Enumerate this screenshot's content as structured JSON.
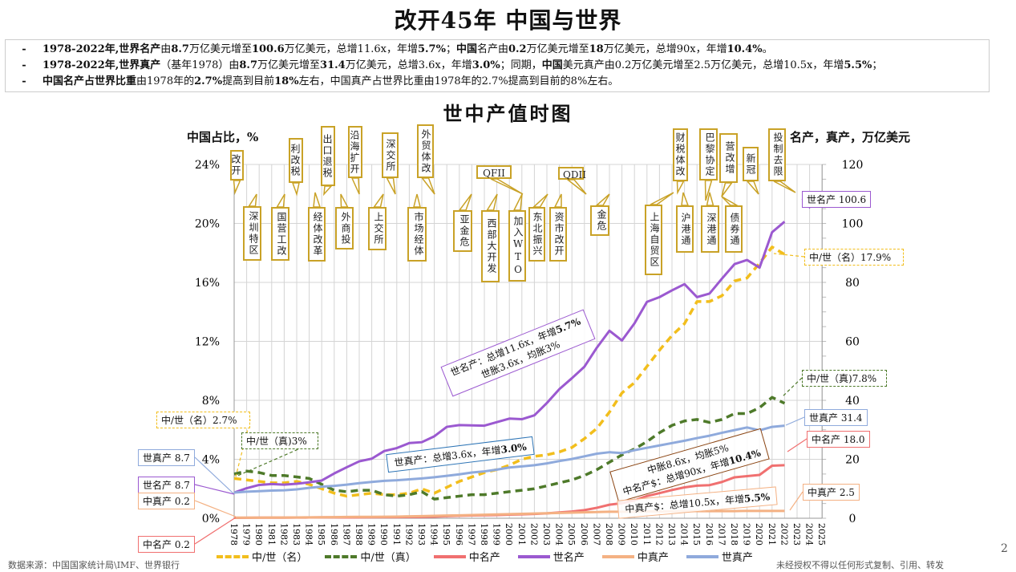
{
  "title": "改开45年 中国与世界",
  "summary": [
    [
      {
        "t": "1978-2022年,世界名产",
        "b": true
      },
      {
        "t": "由"
      },
      {
        "t": "8.7",
        "b": true
      },
      {
        "t": "万亿美元增至"
      },
      {
        "t": "100.6",
        "b": true
      },
      {
        "t": "万亿美元，总增11.6x，年增"
      },
      {
        "t": "5.7%",
        "b": true
      },
      {
        "t": "；"
      },
      {
        "t": "中国",
        "b": true
      },
      {
        "t": "名产由"
      },
      {
        "t": "0.2",
        "b": true
      },
      {
        "t": "万亿美元增至"
      },
      {
        "t": "18",
        "b": true
      },
      {
        "t": "万亿美元，总增90x，年增"
      },
      {
        "t": "10.4%",
        "b": true
      },
      {
        "t": "。"
      }
    ],
    [
      {
        "t": "1978-2022年,世界真产",
        "b": true
      },
      {
        "t": "（基年1978）由"
      },
      {
        "t": "8.7",
        "b": true
      },
      {
        "t": "万亿美元增至"
      },
      {
        "t": "31.4",
        "b": true
      },
      {
        "t": "万亿美元，总增3.6x，年增"
      },
      {
        "t": "3.0%",
        "b": true
      },
      {
        "t": "；同期，"
      },
      {
        "t": "中国",
        "b": true
      },
      {
        "t": "美元真产由0.2万亿美元增至2.5万亿美元，总增10.5x，年增"
      },
      {
        "t": "5.5%",
        "b": true
      },
      {
        "t": "；"
      }
    ],
    [
      {
        "t": "中国名产占世界比重",
        "b": true
      },
      {
        "t": "由1978年的"
      },
      {
        "t": "2.7%",
        "b": true
      },
      {
        "t": "提高到目前"
      },
      {
        "t": "18%",
        "b": true
      },
      {
        "t": "左右，中国真产占世界比重由1978年的2.7%提高到目前的8%左右。"
      }
    ]
  ],
  "summary_bullet": "-",
  "footer": {
    "source": "数据来源：中国国家统计局\\IMF、世界银行",
    "copyright": "未经授权不得以任何形式复制、引用、转发",
    "page": "2"
  },
  "annotations": [
    "改开",
    "深圳特区",
    "国营工改",
    "利改税",
    "经体改革",
    "出口退税",
    "外商投",
    "沿海扩开",
    "上交所",
    "深交所",
    "市场经体",
    "外贸体改",
    "亚金危",
    "QFII",
    "西部大开发",
    "加入WTO",
    "东北振兴",
    "资市改开",
    "QDII",
    "金危",
    "上海自贸区",
    "财税体改",
    "沪港通",
    "深港通",
    "巴黎协定",
    "债券通",
    "营改增",
    "新冠",
    "投制去限"
  ],
  "end_labels": {
    "left": [
      "中/世（名）2.7%",
      "中/世（真)3%",
      "世真产 8.7",
      "世名产 8.7",
      "中真产 0.2",
      "中名产 0.2"
    ],
    "right": [
      "世名产 100.6",
      "中/世（名）17.9%",
      "中/世（真)7.8%",
      "世真产 31.4",
      "中名产 18.0",
      "中真产 2.5"
    ]
  },
  "callouts": {
    "world_nominal": [
      "世名产：总增11.6x，年增",
      "5.7%",
      "世胀3.6x，均胀3%"
    ],
    "world_real": [
      "世真产：总增3.6x，年增",
      "3.0%"
    ],
    "china_nominal": [
      "中胀8.6x，均胀5%",
      "中名产$：总增90x，年增",
      "10.4%"
    ],
    "china_real": [
      "中真产$：总增10.5x，年增",
      "5.5%"
    ]
  },
  "chart_data": {
    "type": "line",
    "title": "世中产值时图",
    "ylabel_left": "中国占比，%",
    "ylabel_right": "名产，真产，万亿美元",
    "ylim_left": [
      0,
      24
    ],
    "ylim_right": [
      0,
      120
    ],
    "yticks_left": [
      "0%",
      "4%",
      "8%",
      "12%",
      "16%",
      "20%",
      "24%"
    ],
    "yticks_right": [
      "0",
      "20",
      "40",
      "60",
      "80",
      "100",
      "120"
    ],
    "x_range": [
      1978,
      2025
    ],
    "x": [
      1978,
      1979,
      1980,
      1981,
      1982,
      1983,
      1984,
      1985,
      1986,
      1987,
      1988,
      1989,
      1990,
      1991,
      1992,
      1993,
      1994,
      1995,
      1996,
      1997,
      1998,
      1999,
      2000,
      2001,
      2002,
      2003,
      2004,
      2005,
      2006,
      2007,
      2008,
      2009,
      2010,
      2011,
      2012,
      2013,
      2014,
      2015,
      2016,
      2017,
      2018,
      2019,
      2020,
      2021,
      2022
    ],
    "grid": true,
    "legend_position": "bottom",
    "series": [
      {
        "name": "中/世（名）",
        "axis": "left",
        "color": "#F2BE1C",
        "dash": "dash",
        "values": [
          2.7,
          2.6,
          2.5,
          2.4,
          2.4,
          2.5,
          2.3,
          2.0,
          1.7,
          1.5,
          1.6,
          1.7,
          1.6,
          1.6,
          1.7,
          2.0,
          1.7,
          2.1,
          2.5,
          2.8,
          3.1,
          3.3,
          3.6,
          4.0,
          4.2,
          4.3,
          4.5,
          4.8,
          5.4,
          6.1,
          7.2,
          8.5,
          9.2,
          10.3,
          11.4,
          12.4,
          13.2,
          14.7,
          14.7,
          15.1,
          16.1,
          16.3,
          17.3,
          18.4,
          17.9
        ]
      },
      {
        "name": "中/世（真）",
        "axis": "left",
        "color": "#4E7A2A",
        "dash": "dash",
        "values": [
          3.0,
          3.2,
          3.1,
          2.9,
          2.9,
          2.8,
          2.7,
          2.3,
          1.9,
          1.8,
          1.9,
          1.9,
          1.6,
          1.5,
          1.6,
          1.8,
          1.3,
          1.4,
          1.5,
          1.6,
          1.6,
          1.7,
          1.8,
          1.9,
          2.0,
          2.2,
          2.4,
          2.6,
          2.9,
          3.3,
          3.8,
          4.3,
          4.7,
          5.2,
          5.8,
          6.3,
          6.6,
          6.7,
          6.5,
          6.7,
          7.1,
          7.1,
          7.5,
          8.2,
          7.8
        ]
      },
      {
        "name": "中名产",
        "axis": "right",
        "color": "#F07070",
        "dash": "solid",
        "values": [
          0.15,
          0.18,
          0.19,
          0.2,
          0.21,
          0.23,
          0.26,
          0.31,
          0.3,
          0.27,
          0.31,
          0.35,
          0.36,
          0.38,
          0.43,
          0.44,
          0.56,
          0.73,
          0.86,
          0.96,
          1.03,
          1.09,
          1.21,
          1.34,
          1.47,
          1.66,
          1.96,
          2.29,
          2.75,
          3.55,
          4.59,
          5.1,
          6.09,
          7.55,
          8.53,
          9.57,
          10.48,
          11.06,
          11.23,
          12.31,
          13.89,
          14.28,
          14.69,
          17.82,
          18.0
        ]
      },
      {
        "name": "世名产",
        "axis": "right",
        "color": "#9B59D0",
        "dash": "solid",
        "values": [
          8.7,
          10.2,
          11.3,
          11.6,
          11.4,
          11.7,
          12.2,
          12.8,
          15.2,
          17.3,
          19.3,
          20.2,
          22.8,
          23.8,
          25.5,
          25.8,
          27.8,
          31.0,
          31.6,
          31.5,
          31.4,
          32.6,
          33.8,
          33.6,
          34.9,
          39.1,
          43.8,
          47.5,
          51.4,
          57.9,
          63.6,
          60.3,
          66.1,
          73.4,
          75.0,
          77.3,
          79.4,
          75.0,
          76.2,
          81.3,
          86.2,
          87.6,
          85.0,
          97.0,
          100.6
        ]
      },
      {
        "name": "中真产",
        "axis": "right",
        "color": "#F4B183",
        "dash": "solid",
        "values": [
          0.2,
          0.21,
          0.22,
          0.23,
          0.25,
          0.27,
          0.31,
          0.35,
          0.38,
          0.43,
          0.47,
          0.49,
          0.51,
          0.56,
          0.64,
          0.72,
          0.82,
          0.91,
          1.0,
          1.1,
          1.2,
          1.3,
          1.4,
          1.5,
          1.6,
          1.7,
          1.8,
          1.9,
          2.0,
          2.1,
          2.2,
          2.2,
          2.2,
          2.3,
          2.3,
          2.3,
          2.4,
          2.4,
          2.4,
          2.4,
          2.4,
          2.5,
          2.5,
          2.5,
          2.5
        ]
      },
      {
        "name": "世真产",
        "axis": "right",
        "color": "#8FAADC",
        "dash": "solid",
        "values": [
          8.7,
          9.0,
          9.2,
          9.4,
          9.5,
          9.8,
          10.3,
          10.7,
          11.0,
          11.4,
          11.9,
          12.3,
          12.7,
          12.9,
          13.2,
          13.5,
          13.9,
          14.4,
          14.9,
          15.5,
          15.9,
          16.5,
          17.2,
          17.6,
          18.0,
          18.6,
          19.4,
          20.1,
          21.0,
          21.9,
          22.4,
          22.1,
          23.1,
          23.9,
          24.7,
          25.5,
          26.3,
          27.2,
          28.0,
          29.0,
          29.9,
          30.8,
          29.8,
          31.0,
          31.4
        ]
      }
    ]
  }
}
